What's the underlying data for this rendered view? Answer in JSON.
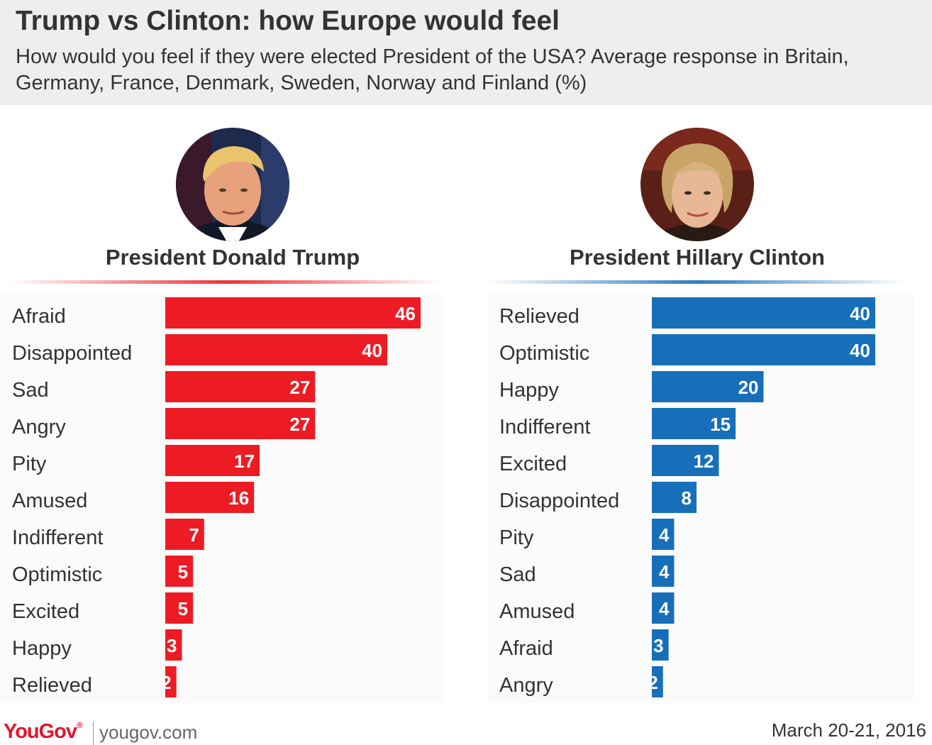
{
  "title": "Trump vs Clinton: how Europe would feel",
  "subtitle": "How would you feel if they were elected President of the USA? Average response in Britain, Germany, France, Denmark, Sweden, Norway and Finland (%)",
  "colors": {
    "trump": "#ed1c24",
    "clinton": "#176fba",
    "header_bg": "#eeeeee",
    "text": "#333333"
  },
  "footer": {
    "logo": "YouGov",
    "url": "yougov.com",
    "date": "March 20-21, 2016"
  },
  "chart_data": [
    {
      "type": "bar",
      "orientation": "horizontal",
      "series_title": "President Donald Trump",
      "color": "#ed1c24",
      "categories": [
        "Afraid",
        "Disappointed",
        "Sad",
        "Angry",
        "Pity",
        "Amused",
        "Indifferent",
        "Optimistic",
        "Excited",
        "Happy",
        "Relieved"
      ],
      "values": [
        46,
        40,
        27,
        27,
        17,
        16,
        7,
        5,
        5,
        3,
        2
      ],
      "xlim": [
        0,
        46
      ]
    },
    {
      "type": "bar",
      "orientation": "horizontal",
      "series_title": "President Hillary Clinton",
      "color": "#176fba",
      "categories": [
        "Relieved",
        "Optimistic",
        "Happy",
        "Indifferent",
        "Excited",
        "Disappointed",
        "Pity",
        "Sad",
        "Amused",
        "Afraid",
        "Angry"
      ],
      "values": [
        40,
        40,
        20,
        15,
        12,
        8,
        4,
        4,
        4,
        3,
        2
      ],
      "xlim": [
        0,
        40
      ]
    }
  ]
}
